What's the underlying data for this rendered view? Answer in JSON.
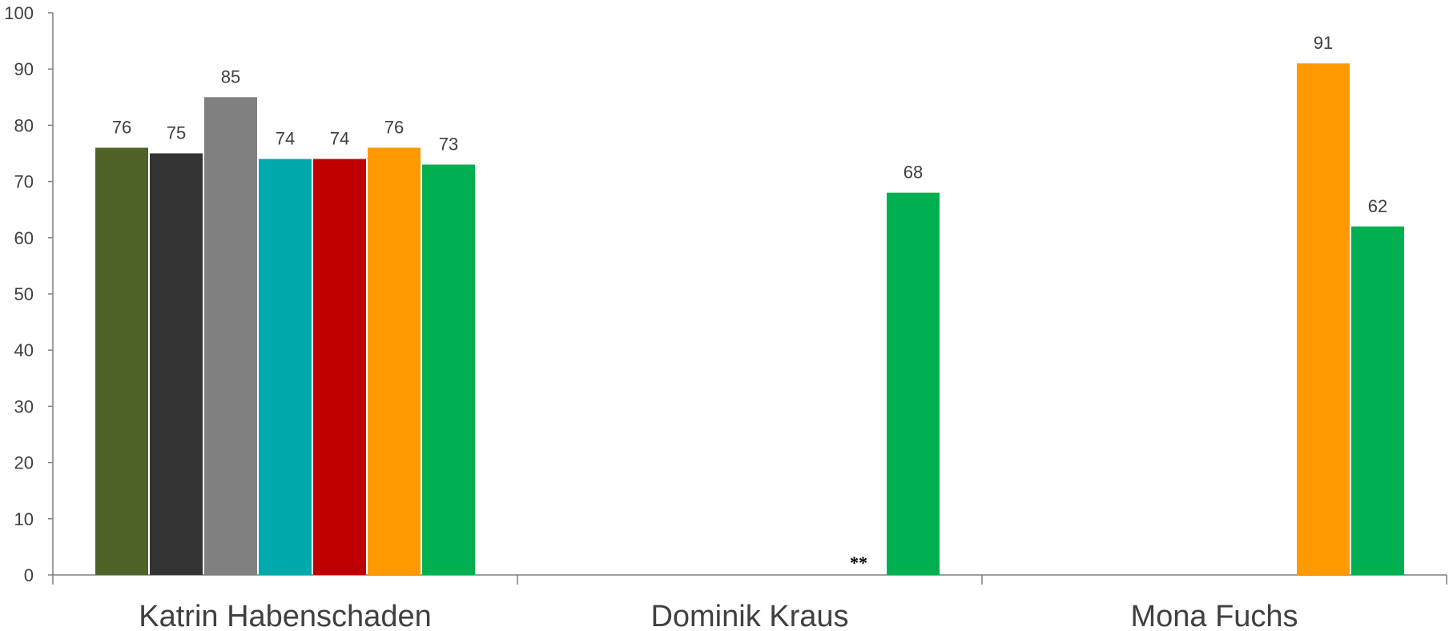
{
  "chart_data": {
    "type": "bar",
    "categories": [
      "Katrin Habenschaden",
      "Dominik Kraus",
      "Mona Fuchs"
    ],
    "yticks": [
      "0",
      "10",
      "20",
      "30",
      "40",
      "50",
      "60",
      "70",
      "80",
      "90",
      "100"
    ],
    "ylim": [
      0,
      100
    ],
    "grid": false,
    "series_colors": [
      "#4f6228",
      "#333333",
      "#808080",
      "#00a9ac",
      "#c00000",
      "#ff9900",
      "#00b050"
    ],
    "values": [
      [
        76,
        75,
        85,
        74,
        74,
        76,
        73
      ],
      [
        null,
        null,
        null,
        null,
        null,
        null,
        68
      ],
      [
        null,
        null,
        null,
        null,
        null,
        91,
        62
      ]
    ],
    "data_labels": [
      [
        "76",
        "75",
        "85",
        "74",
        "74",
        "76",
        "73"
      ],
      [
        null,
        null,
        null,
        null,
        null,
        null,
        "68"
      ],
      [
        null,
        null,
        null,
        null,
        null,
        "91",
        "62"
      ]
    ],
    "annotation": {
      "text": "**",
      "category_index": 1,
      "series_index": 5
    }
  }
}
